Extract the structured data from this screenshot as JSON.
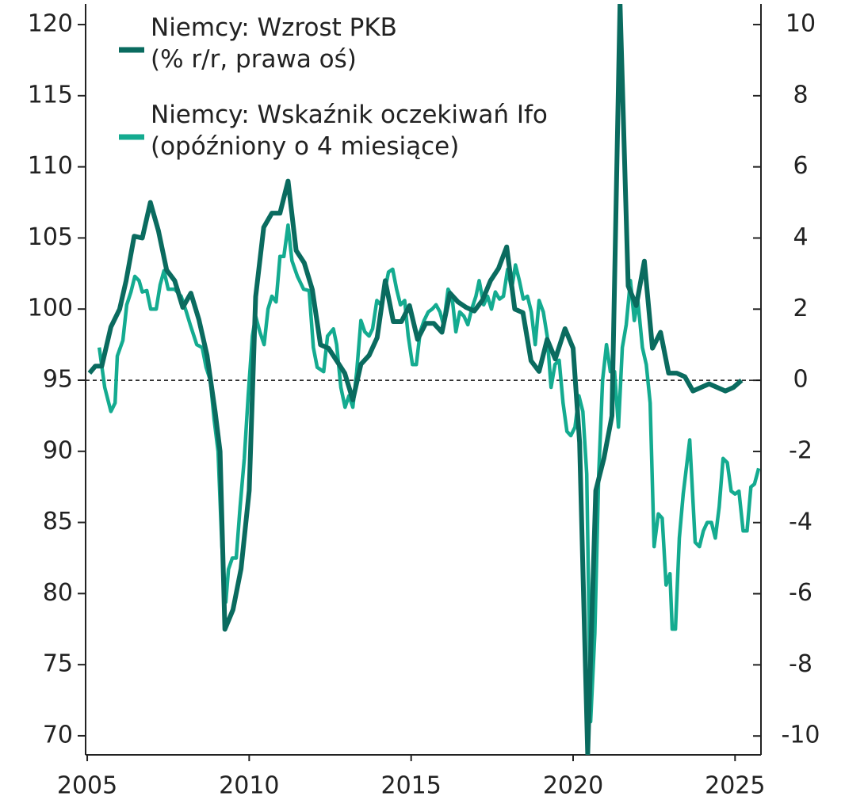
{
  "chart_data": {
    "type": "line",
    "xlim": [
      2004.95,
      2025.8
    ],
    "xticks": [
      2005,
      2010,
      2015,
      2020,
      2025
    ],
    "ylim": [
      68.66,
      121.45
    ],
    "yticks": [
      70,
      75,
      80,
      85,
      90,
      95,
      100,
      105,
      110,
      115,
      120
    ],
    "y2lim": [
      -10.53,
      10.58
    ],
    "y2ticks": [
      -10,
      -8,
      -6,
      -4,
      -2,
      0,
      2,
      4,
      6,
      8,
      10
    ],
    "reference_line": {
      "value": 0,
      "axis": "y2",
      "style": "dashed"
    },
    "legend": "upper left",
    "series": [
      {
        "name": "Niemcy: Wzrost PKB\n(% r/r, prawa oś)",
        "color": "#0a6b5f",
        "axis": "y2",
        "x": [
          2005.07,
          2005.25,
          2005.45,
          2005.73,
          2006.0,
          2006.2,
          2006.45,
          2006.7,
          2006.95,
          2007.2,
          2007.45,
          2007.7,
          2007.95,
          2008.2,
          2008.45,
          2008.7,
          2008.95,
          2009.1,
          2009.25,
          2009.5,
          2009.75,
          2010.0,
          2010.2,
          2010.45,
          2010.7,
          2010.95,
          2011.2,
          2011.45,
          2011.7,
          2011.95,
          2012.2,
          2012.45,
          2012.7,
          2012.95,
          2013.2,
          2013.45,
          2013.7,
          2013.95,
          2014.2,
          2014.45,
          2014.7,
          2014.95,
          2015.2,
          2015.45,
          2015.7,
          2015.95,
          2016.2,
          2016.45,
          2016.7,
          2016.95,
          2017.2,
          2017.45,
          2017.7,
          2017.95,
          2018.2,
          2018.45,
          2018.7,
          2018.95,
          2019.2,
          2019.45,
          2019.75,
          2020.0,
          2020.2,
          2020.45,
          2020.7,
          2020.95,
          2021.2,
          2021.45,
          2021.7,
          2021.95,
          2022.2,
          2022.45,
          2022.7,
          2022.95,
          2023.2,
          2023.45,
          2023.7,
          2023.95,
          2024.2,
          2024.45,
          2024.7,
          2024.95,
          2025.2
        ],
        "values": [
          0.2,
          0.4,
          0.4,
          1.5,
          2.0,
          2.8,
          4.05,
          4.0,
          5.0,
          4.2,
          3.1,
          2.8,
          2.05,
          2.45,
          1.7,
          0.7,
          -0.9,
          -2.0,
          -7.0,
          -6.45,
          -5.3,
          -3.1,
          2.35,
          4.3,
          4.7,
          4.7,
          5.6,
          3.65,
          3.3,
          2.55,
          1.0,
          0.9,
          0.55,
          0.2,
          -0.55,
          0.45,
          0.7,
          1.2,
          2.8,
          1.65,
          1.65,
          2.1,
          1.15,
          1.6,
          1.6,
          1.35,
          2.45,
          2.2,
          2.05,
          1.95,
          2.25,
          2.8,
          3.15,
          3.75,
          2.0,
          1.9,
          0.55,
          0.25,
          1.15,
          0.6,
          1.45,
          0.9,
          -1.75,
          -10.5,
          -3.1,
          -2.2,
          -1.0,
          10.6,
          2.65,
          2.1,
          3.35,
          0.9,
          1.35,
          0.2,
          0.2,
          0.1,
          -0.3,
          -0.2,
          -0.1,
          -0.2,
          -0.3,
          -0.2,
          0.0
        ]
      },
      {
        "name": "Niemcy: Wskaźnik oczekiwań Ifo\n(opóźniony o 4 miesiące)",
        "color": "#14ab90",
        "axis": "y",
        "x": [
          2005.37,
          2005.54,
          2005.73,
          2005.86,
          2005.93,
          2006.1,
          2006.22,
          2006.35,
          2006.47,
          2006.6,
          2006.7,
          2006.84,
          2006.96,
          2007.13,
          2007.25,
          2007.37,
          2007.5,
          2007.7,
          2007.9,
          2008.06,
          2008.18,
          2008.38,
          2008.55,
          2008.67,
          2008.8,
          2008.92,
          2009.04,
          2009.16,
          2009.28,
          2009.36,
          2009.48,
          2009.6,
          2009.72,
          2009.85,
          2009.97,
          2010.1,
          2010.2,
          2010.33,
          2010.46,
          2010.58,
          2010.7,
          2010.83,
          2010.95,
          2011.07,
          2011.2,
          2011.32,
          2011.49,
          2011.68,
          2011.85,
          2011.98,
          2012.1,
          2012.3,
          2012.42,
          2012.6,
          2012.7,
          2012.83,
          2012.96,
          2013.08,
          2013.2,
          2013.32,
          2013.45,
          2013.57,
          2013.7,
          2013.81,
          2013.94,
          2014.06,
          2014.18,
          2014.3,
          2014.43,
          2014.55,
          2014.67,
          2014.8,
          2014.91,
          2015.04,
          2015.16,
          2015.28,
          2015.4,
          2015.53,
          2015.65,
          2015.77,
          2015.89,
          2016.0,
          2016.14,
          2016.26,
          2016.38,
          2016.5,
          2016.63,
          2016.75,
          2016.87,
          2017.0,
          2017.1,
          2017.24,
          2017.36,
          2017.48,
          2017.6,
          2017.73,
          2017.85,
          2017.98,
          2018.1,
          2018.22,
          2018.34,
          2018.46,
          2018.59,
          2018.71,
          2018.83,
          2018.95,
          2019.08,
          2019.2,
          2019.32,
          2019.44,
          2019.57,
          2019.69,
          2019.81,
          2019.93,
          2020.06,
          2020.18,
          2020.3,
          2020.42,
          2020.54,
          2020.67,
          2020.79,
          2020.91,
          2021.03,
          2021.15,
          2021.28,
          2021.4,
          2021.52,
          2021.64,
          2021.77,
          2021.89,
          2022.0,
          2022.14,
          2022.26,
          2022.38,
          2022.5,
          2022.63,
          2022.75,
          2022.87,
          2022.99,
          2023.06,
          2023.16,
          2023.28,
          2023.4,
          2023.6,
          2023.77,
          2023.9,
          2024.02,
          2024.14,
          2024.27,
          2024.39,
          2024.51,
          2024.63,
          2024.76,
          2024.88,
          2025.0,
          2025.12,
          2025.25,
          2025.37,
          2025.49,
          2025.6,
          2025.73
        ],
        "values": [
          97.3,
          94.5,
          92.8,
          93.4,
          96.7,
          97.8,
          100.3,
          101.2,
          102.3,
          102.0,
          101.2,
          101.3,
          100.0,
          100.0,
          101.7,
          102.7,
          101.4,
          101.4,
          100.9,
          99.8,
          98.9,
          97.5,
          97.3,
          95.9,
          95.0,
          92.2,
          90.0,
          83.3,
          79.4,
          81.7,
          82.5,
          82.5,
          86.1,
          89.5,
          93.9,
          98.1,
          99.5,
          98.4,
          97.5,
          100.0,
          100.9,
          100.5,
          103.7,
          103.7,
          105.9,
          103.4,
          102.3,
          101.4,
          101.3,
          97.3,
          95.9,
          95.6,
          98.1,
          98.6,
          97.5,
          94.5,
          93.1,
          93.9,
          93.1,
          95.6,
          99.2,
          98.4,
          98.1,
          98.6,
          100.6,
          100.3,
          101.2,
          102.6,
          102.8,
          101.4,
          100.3,
          100.6,
          98.1,
          96.1,
          96.1,
          98.4,
          99.2,
          99.8,
          100.0,
          100.3,
          99.8,
          98.9,
          101.4,
          100.9,
          98.4,
          99.8,
          99.5,
          98.9,
          100.0,
          100.9,
          102.0,
          100.3,
          100.9,
          100.0,
          101.2,
          100.7,
          100.9,
          102.8,
          101.4,
          103.1,
          102.0,
          100.7,
          100.9,
          99.8,
          97.5,
          100.6,
          99.8,
          98.1,
          94.5,
          96.1,
          96.4,
          93.4,
          91.4,
          91.1,
          91.7,
          93.9,
          92.8,
          88.4,
          71.0,
          77.2,
          88.4,
          95.0,
          97.5,
          95.6,
          95.6,
          91.7,
          97.3,
          98.9,
          102.0,
          99.2,
          100.6,
          97.3,
          96.1,
          93.4,
          83.3,
          85.6,
          85.3,
          80.6,
          81.4,
          77.5,
          77.5,
          83.9,
          87.0,
          90.8,
          83.6,
          83.3,
          84.4,
          85.0,
          85.0,
          83.9,
          86.1,
          89.5,
          89.2,
          87.2,
          87.0,
          87.2,
          84.4,
          84.4,
          87.5,
          87.7,
          88.8
        ]
      }
    ]
  }
}
